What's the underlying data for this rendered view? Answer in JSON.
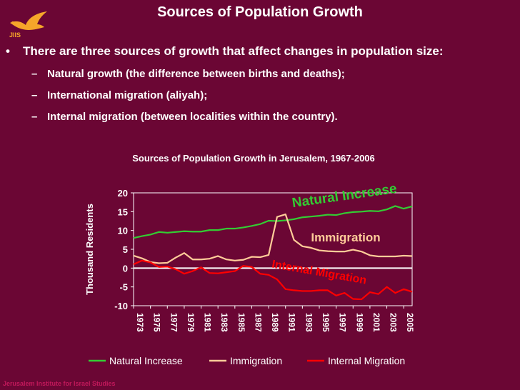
{
  "slide": {
    "title": "Sources of Population Growth",
    "logo_text": "JIIS",
    "bullet": "There are three sources of growth that affect changes in population size:",
    "sub_bullets": [
      "Natural growth (the difference between births and deaths);",
      "International migration (aliyah);",
      "Internal migration (between localities within the country)."
    ],
    "footer": "Jerusalem Institute for Israel Studies"
  },
  "colors": {
    "background": "#6b0634",
    "natural": "#33cc33",
    "immigration": "#ffcc99",
    "internal": "#ff0000",
    "annotation_natural": "#33cc33",
    "annotation_immigration": "#ffcc99",
    "annotation_internal": "#ff0000"
  },
  "chart_data": {
    "type": "line",
    "title": "Sources of Population Growth in Jerusalem, 1967-2006",
    "xlabel": "",
    "ylabel": "Thousand Residents",
    "ylim": [
      -10,
      20
    ],
    "yticks": [
      20,
      15,
      10,
      5,
      0,
      -5,
      -10
    ],
    "x": [
      1973,
      1974,
      1975,
      1976,
      1977,
      1978,
      1979,
      1980,
      1981,
      1982,
      1983,
      1984,
      1985,
      1986,
      1987,
      1988,
      1989,
      1990,
      1991,
      1992,
      1993,
      1994,
      1995,
      1996,
      1997,
      1998,
      1999,
      2000,
      2001,
      2002,
      2003,
      2004,
      2005,
      2006
    ],
    "xtick_labels": [
      "1973",
      "1975",
      "1977",
      "1979",
      "1981",
      "1983",
      "1985",
      "1987",
      "1989",
      "1991",
      "1993",
      "1995",
      "1997",
      "1999",
      "2001",
      "2003",
      "2005"
    ],
    "series": [
      {
        "name": "Natural Increase",
        "color": "#33cc33",
        "values": [
          8.0,
          8.5,
          8.9,
          9.6,
          9.4,
          9.6,
          9.8,
          9.7,
          9.7,
          10.1,
          10.1,
          10.5,
          10.5,
          10.8,
          11.2,
          11.7,
          12.6,
          12.5,
          12.7,
          13.0,
          13.5,
          13.7,
          13.9,
          14.2,
          14.1,
          14.6,
          14.9,
          15.0,
          15.2,
          15.1,
          15.6,
          16.5,
          15.8,
          16.4
        ]
      },
      {
        "name": "Immigration",
        "color": "#ffcc99",
        "values": [
          3.3,
          2.6,
          1.6,
          1.3,
          1.4,
          2.8,
          4.0,
          2.3,
          2.3,
          2.5,
          3.2,
          2.3,
          2.0,
          2.2,
          3.0,
          2.9,
          3.5,
          13.6,
          14.3,
          7.5,
          5.8,
          5.4,
          4.7,
          4.5,
          4.4,
          4.4,
          4.9,
          4.4,
          3.4,
          3.1,
          3.1,
          3.1,
          3.3,
          3.2
        ]
      },
      {
        "name": "Internal Migration",
        "color": "#ff0000",
        "values": [
          1.0,
          2.0,
          1.5,
          0.3,
          0.4,
          -0.3,
          -1.5,
          -0.8,
          0.2,
          -1.3,
          -1.4,
          -1.1,
          -0.8,
          0.6,
          0.3,
          -1.5,
          -1.8,
          -3.0,
          -5.6,
          -5.9,
          -6.1,
          -6.1,
          -5.9,
          -5.9,
          -7.3,
          -6.6,
          -8.2,
          -8.3,
          -6.4,
          -6.9,
          -5.0,
          -6.6,
          -5.6,
          -6.3
        ]
      }
    ],
    "annotations": [
      {
        "text": "Natural Increase",
        "series": "Natural Increase"
      },
      {
        "text": "Immigration",
        "series": "Immigration"
      },
      {
        "text": "Internal Migration",
        "series": "Internal Migration"
      }
    ],
    "legend": {
      "placement": "bottom",
      "items": [
        "Natural Increase",
        "Immigration",
        "Internal Migration"
      ]
    },
    "grid": false
  }
}
